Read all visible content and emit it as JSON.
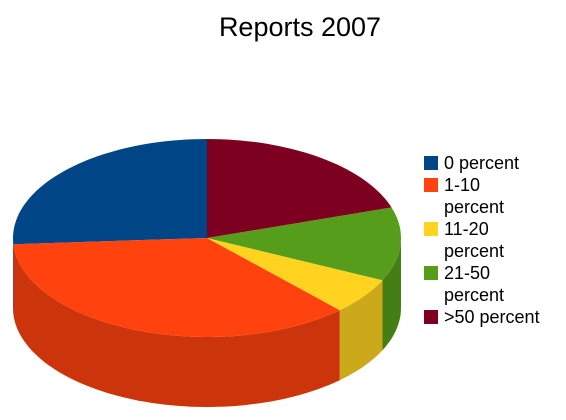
{
  "chart_data": {
    "type": "pie",
    "title": "Reports 2007",
    "categories": [
      "0 percent",
      "1-10 percent",
      "11-20 percent",
      "21-50 percent",
      ">50 percent"
    ],
    "values": [
      26,
      36,
      6,
      12,
      20
    ],
    "colors": [
      "#004586",
      "#ff420e",
      "#ffd320",
      "#579d1c",
      "#7e0021"
    ],
    "legend": "right"
  }
}
